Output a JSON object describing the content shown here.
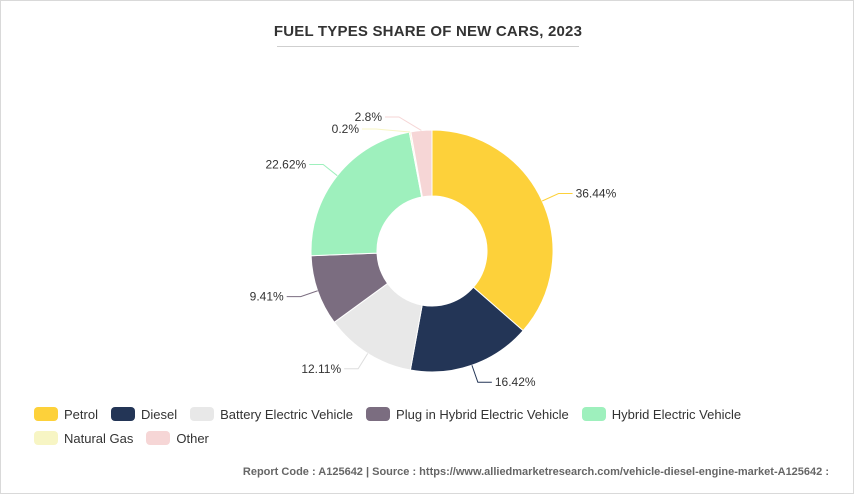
{
  "chart_data": {
    "type": "pie",
    "title": "FUEL TYPES SHARE OF NEW CARS, 2023",
    "categories": [
      "Petrol",
      "Diesel",
      "Battery Electric Vehicle",
      "Plug in Hybrid Electric Vehicle",
      "Hybrid Electric Vehicle",
      "Natural Gas",
      "Other"
    ],
    "values": [
      36.44,
      16.42,
      12.11,
      9.41,
      22.62,
      0.2,
      2.8
    ],
    "labels": [
      "36.44%",
      "16.42%",
      "12.11%",
      "9.41%",
      "22.62%",
      "0.2%",
      "2.8%"
    ],
    "colors": [
      "#fdd13a",
      "#233556",
      "#e8e8e8",
      "#7b6d80",
      "#9ef0bd",
      "#f7f5c4",
      "#f6d6d6"
    ],
    "donut": true,
    "legend_position": "bottom"
  },
  "footer": {
    "text": "Report Code : A125642  |  Source : https://www.alliedmarketresearch.com/vehicle-diesel-engine-market-A125642 :"
  }
}
